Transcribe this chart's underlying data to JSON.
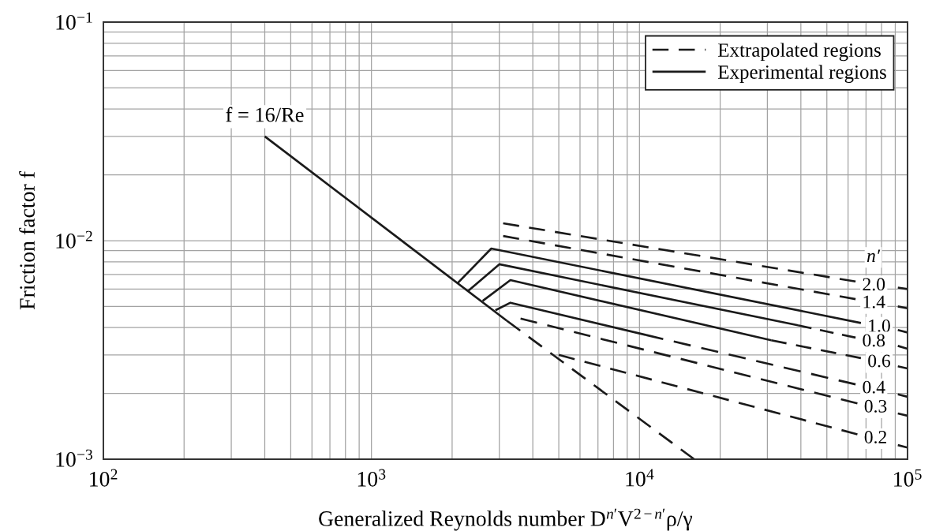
{
  "chart_data": {
    "type": "line",
    "xlabel": "Generalized Reynolds number D$^{n′}$V$^{2−n′}$ρ/γ",
    "ylabel": "Friction factor f",
    "log": "xy",
    "xlim": [
      100,
      100000
    ],
    "ylim": [
      0.001,
      0.1
    ],
    "xticks": [
      {
        "value": 100,
        "label": "10$^{2}$"
      },
      {
        "value": 1000,
        "label": "10$^{3}$"
      },
      {
        "value": 10000,
        "label": "10$^{4}$"
      },
      {
        "value": 100000,
        "label": "10$^{5}$"
      }
    ],
    "yticks": [
      {
        "value": 0.001,
        "label": "10$^{−3}$"
      },
      {
        "value": 0.01,
        "label": "10$^{−2}$"
      },
      {
        "value": 0.1,
        "label": "10$^{−1}$"
      }
    ],
    "grid": true,
    "legend": "top right",
    "series": [
      {
        "name": "Extrapolated regions",
        "color": "#1a1a1a",
        "line_style": "dashed",
        "x": [
          3100,
          64000
        ],
        "values": [
          0.012,
          0.0065
        ]
      },
      {
        "color": "#1a1a1a",
        "line_style": "dashed",
        "x": [
          92000,
          100000
        ],
        "values": [
          0.0061,
          0.006
        ]
      },
      {
        "color": "#1a1a1a",
        "line_style": "dashed",
        "x": [
          3100,
          64000
        ],
        "values": [
          0.0105,
          0.0054
        ]
      },
      {
        "color": "#1a1a1a",
        "line_style": "dashed",
        "x": [
          92000,
          100000
        ],
        "values": [
          0.005,
          0.0049
        ]
      },
      {
        "color": "#1a1a1a",
        "line_style": "dashed",
        "x": [
          39000,
          64000
        ],
        "values": [
          0.0041,
          0.0036
        ]
      },
      {
        "color": "#1a1a1a",
        "line_style": "dashed",
        "x": [
          92000,
          100000
        ],
        "values": [
          0.0033,
          0.0032
        ]
      },
      {
        "color": "#1a1a1a",
        "line_style": "dashed",
        "x": [
          31000,
          67000
        ],
        "values": [
          0.0035,
          0.0029
        ]
      },
      {
        "color": "#1a1a1a",
        "line_style": "dashed",
        "x": [
          92000,
          100000
        ],
        "values": [
          0.00266,
          0.0026
        ]
      },
      {
        "color": "#1a1a1a",
        "line_style": "dashed",
        "x": [
          10600,
          64000
        ],
        "values": [
          0.0037,
          0.0022
        ]
      },
      {
        "color": "#1a1a1a",
        "line_style": "dashed",
        "x": [
          92000,
          100000
        ],
        "values": [
          0.00198,
          0.00193
        ]
      },
      {
        "color": "#1a1a1a",
        "line_style": "dashed",
        "x": [
          3600,
          65000
        ],
        "values": [
          0.0044,
          0.0018
        ]
      },
      {
        "color": "#1a1a1a",
        "line_style": "dashed",
        "x": [
          92000,
          100000
        ],
        "values": [
          0.00162,
          0.00158
        ]
      },
      {
        "color": "#1a1a1a",
        "line_style": "dashed",
        "x": [
          5000,
          65000
        ],
        "values": [
          0.003,
          0.0013
        ]
      },
      {
        "color": "#1a1a1a",
        "line_style": "dashed",
        "x": [
          92000,
          100000
        ],
        "values": [
          0.00116,
          0.00113
        ]
      },
      {
        "color": "#1a1a1a",
        "line_style": "dashed",
        "x": [
          3200,
          16000
        ],
        "values": [
          0.0043,
          0.001
        ]
      },
      {
        "name": "Experimental regions",
        "color": "#1a1a1a",
        "line_style": "solid",
        "x": [
          400,
          3200
        ],
        "values": [
          0.03,
          0.0043
        ]
      },
      {
        "color": "#1a1a1a",
        "line_style": "solid",
        "x": [
          2100,
          2800,
          67000
        ],
        "values": [
          0.0064,
          0.0092,
          0.0042
        ]
      },
      {
        "color": "#1a1a1a",
        "line_style": "solid",
        "x": [
          92000,
          100000
        ],
        "values": [
          0.0039,
          0.0038
        ]
      },
      {
        "color": "#1a1a1a",
        "line_style": "solid",
        "x": [
          2300,
          3000,
          39000
        ],
        "values": [
          0.0059,
          0.0078,
          0.0041
        ]
      },
      {
        "color": "#1a1a1a",
        "line_style": "solid",
        "x": [
          2600,
          3300,
          31000
        ],
        "values": [
          0.0053,
          0.0066,
          0.0035
        ]
      },
      {
        "color": "#1a1a1a",
        "line_style": "solid",
        "x": [
          2900,
          3300,
          10600
        ],
        "values": [
          0.0048,
          0.0052,
          0.0037
        ]
      }
    ],
    "annotations": [
      {
        "text": "f = 16/Re",
        "x": 400,
        "y": 0.03
      },
      "n′",
      {
        "text": "2.0",
        "x": 64000,
        "y": 0.0065
      },
      {
        "text": "1.4",
        "x": 64000,
        "y": 0.0054
      },
      {
        "text": "1.0",
        "x": 67000,
        "y": 0.0042
      },
      {
        "text": "0.8",
        "x": 64000,
        "y": 0.0036
      },
      {
        "text": "0.6",
        "x": 67000,
        "y": 0.0029
      },
      {
        "text": "0.4",
        "x": 64000,
        "y": 0.0022
      },
      {
        "text": "0.3",
        "x": 65000,
        "y": 0.0018
      },
      {
        "text": "0.2",
        "x": 65000,
        "y": 0.0013
      }
    ]
  }
}
